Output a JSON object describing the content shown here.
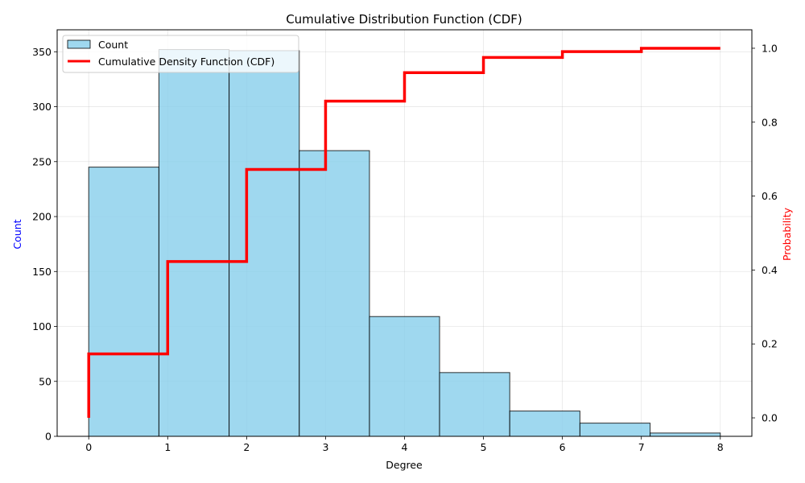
{
  "chart_data": {
    "type": "bar",
    "title": "Cumulative Distribution Function (CDF)",
    "xlabel": "Degree",
    "ylabel": "Count",
    "y2label": "Probability",
    "xlim": [
      -0.4,
      8.4
    ],
    "ylim": [
      0,
      370
    ],
    "y2lim": [
      -0.05,
      1.05
    ],
    "xticks": [
      "0",
      "1",
      "2",
      "3",
      "4",
      "5",
      "6",
      "7",
      "8"
    ],
    "yticks": [
      "0",
      "50",
      "100",
      "150",
      "200",
      "250",
      "300",
      "350"
    ],
    "y2ticks": [
      "0.0",
      "0.2",
      "0.4",
      "0.6",
      "0.8",
      "1.0"
    ],
    "grid": true,
    "legend_position": "top-left",
    "histogram": {
      "name": "Count",
      "bin_edges": [
        0,
        0.889,
        1.778,
        2.667,
        3.556,
        4.444,
        5.333,
        6.222,
        7.111,
        8
      ],
      "counts": [
        245,
        352,
        351,
        260,
        109,
        58,
        23,
        12,
        3
      ],
      "color": "#87ceeb",
      "edge_color": "#000000"
    },
    "cdf": {
      "name": "Cumulative Density Function (CDF)",
      "color": "#ff0000",
      "x": [
        0,
        1,
        2,
        3,
        4,
        5,
        6,
        7,
        8
      ],
      "y": [
        0.173,
        0.423,
        0.672,
        0.857,
        0.934,
        0.975,
        0.991,
        1.0,
        1.0
      ],
      "start_y": 0.0
    },
    "colors": {
      "ylabel": "#0000ff",
      "y2label": "#ff0000"
    }
  }
}
